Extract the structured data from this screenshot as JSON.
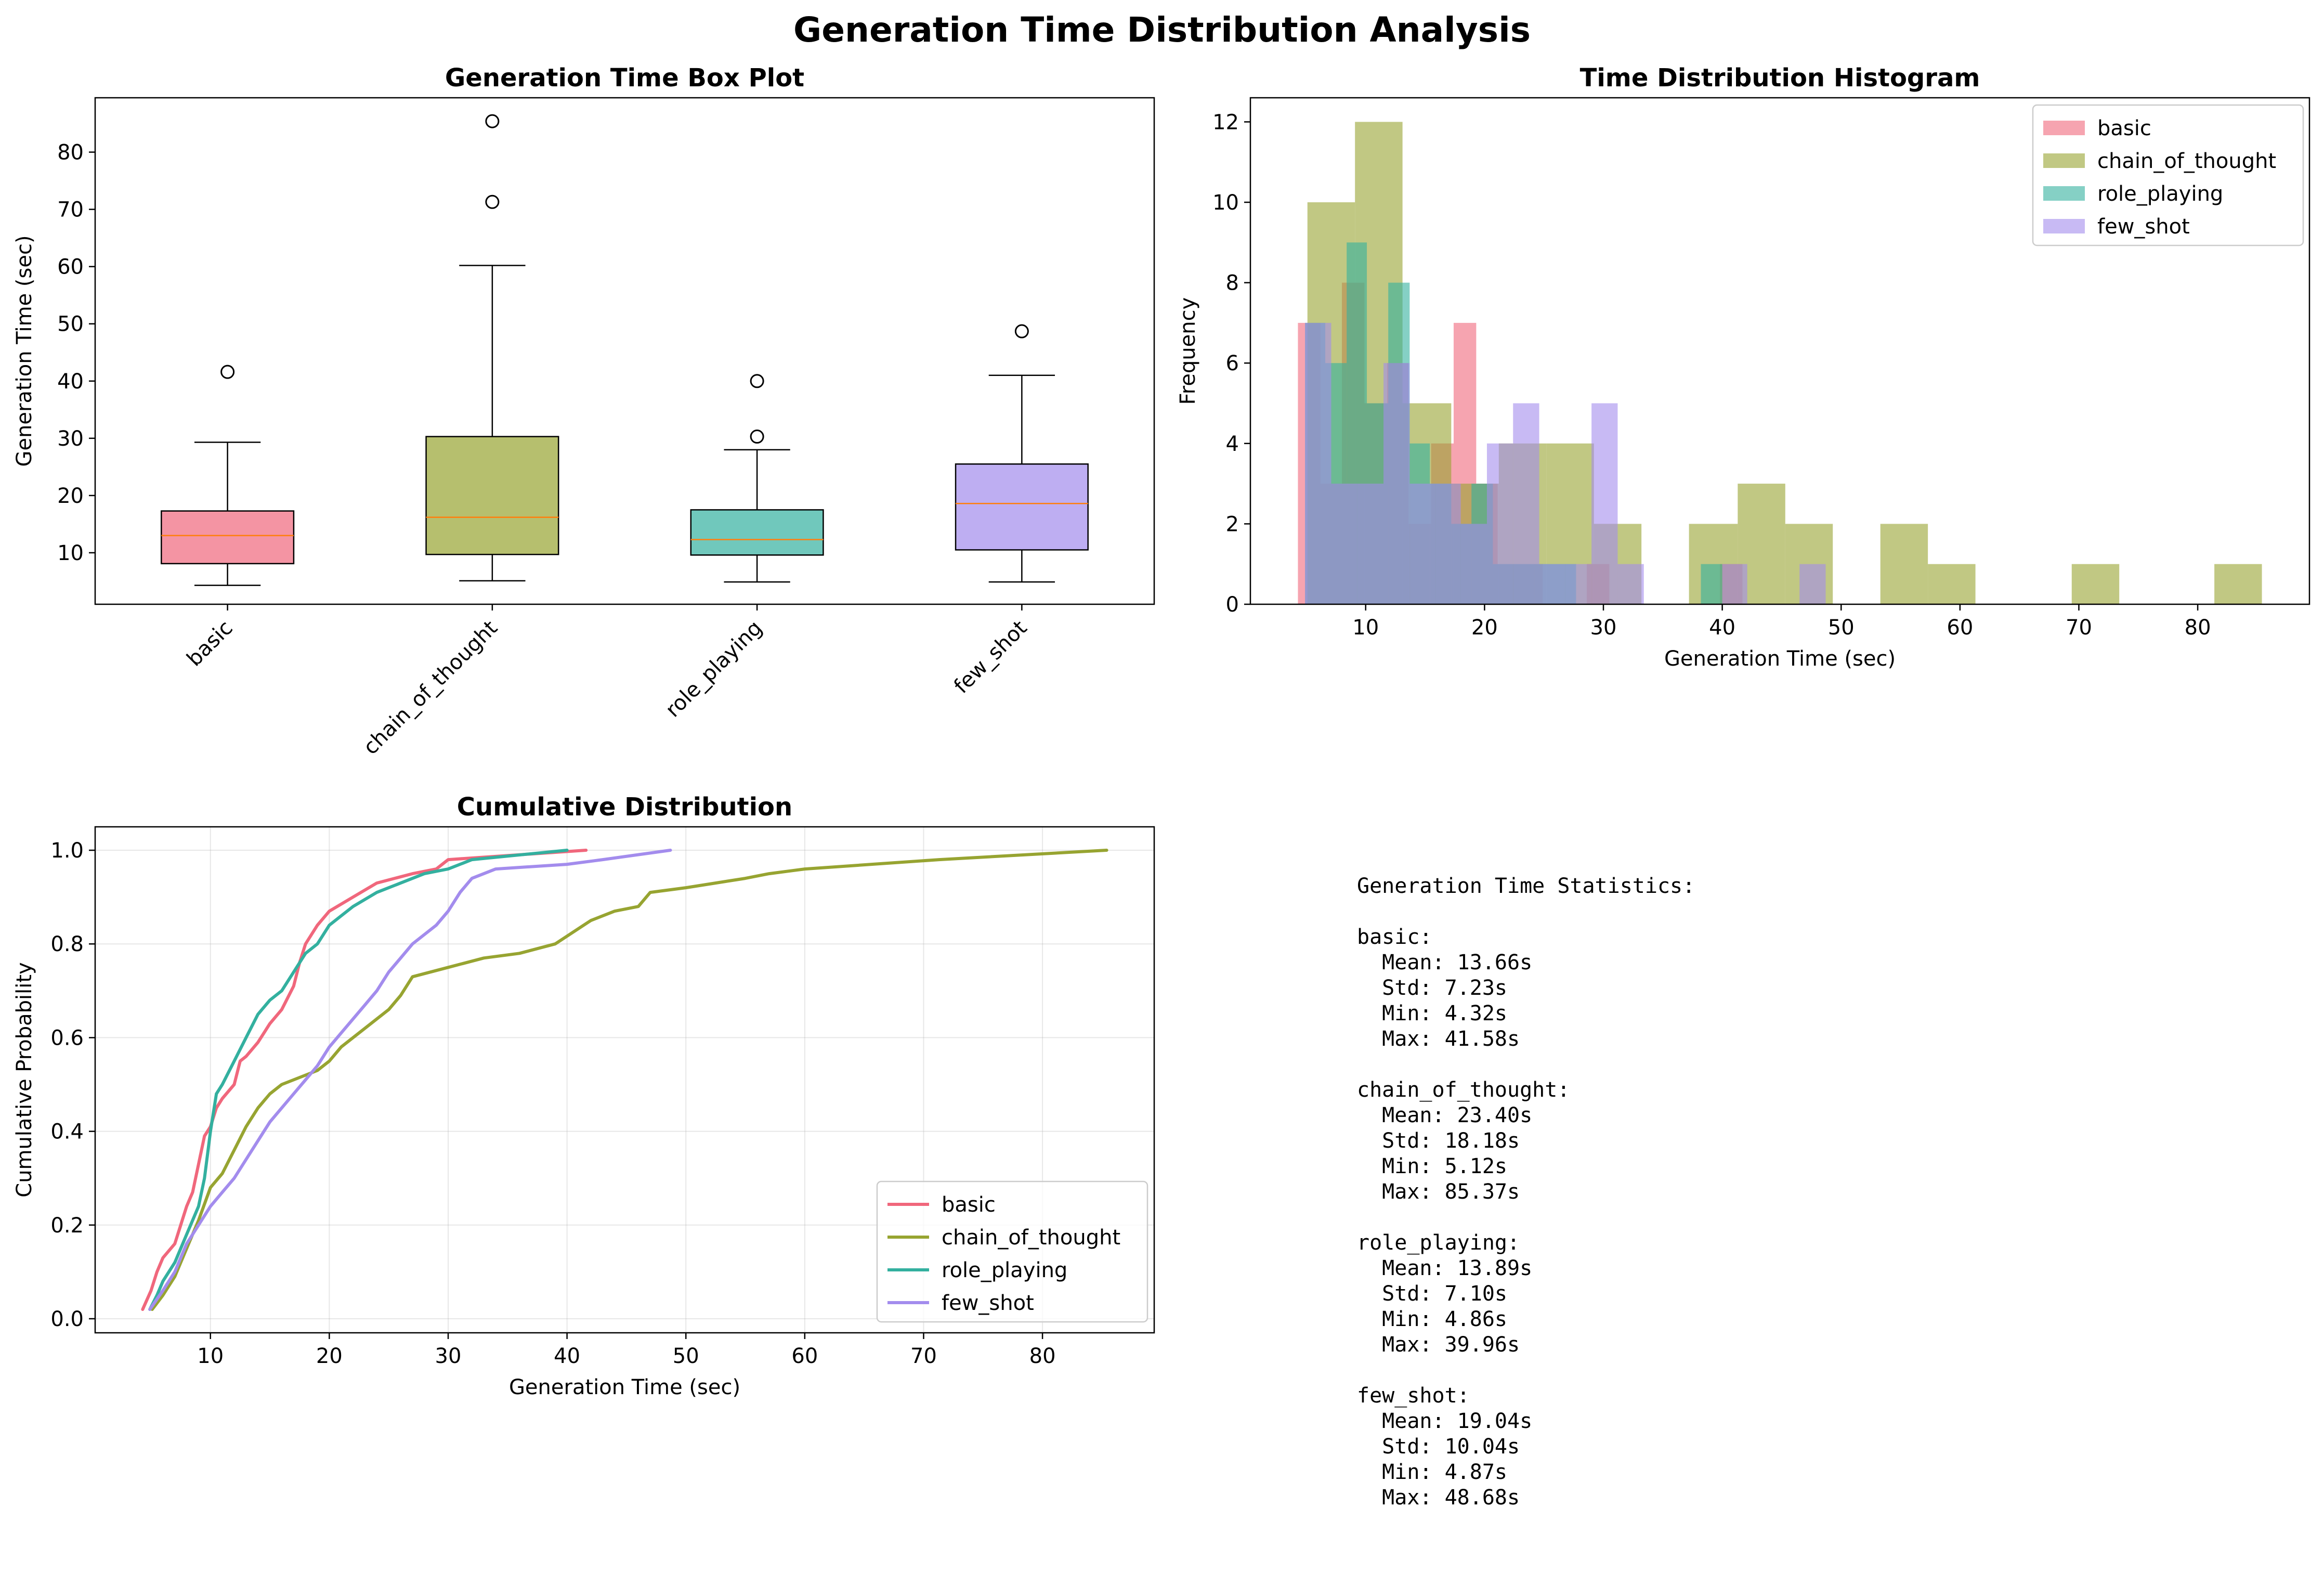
{
  "title": "Generation Time Distribution Analysis",
  "colors": {
    "basic": "#f0677c",
    "chain_of_thought": "#97a431",
    "role_playing": "#33b09f",
    "few_shot": "#a38ced",
    "median": "#ff7f0e"
  },
  "chart_data": [
    {
      "type": "box",
      "title": "Generation Time Box Plot",
      "ylabel": "Generation Time (sec)",
      "xlabel": "",
      "ylim": [
        1,
        89.5
      ],
      "yticks": [
        10,
        20,
        30,
        40,
        50,
        60,
        70,
        80
      ],
      "categories": [
        "basic",
        "chain_of_thought",
        "role_playing",
        "few_shot"
      ],
      "boxes": [
        {
          "name": "basic",
          "whisker_low": 4.3,
          "q1": 8.1,
          "median": 13.0,
          "q3": 17.3,
          "whisker_high": 29.3,
          "outliers": [
            41.6
          ]
        },
        {
          "name": "chain_of_thought",
          "whisker_low": 5.1,
          "q1": 9.7,
          "median": 16.2,
          "q3": 30.3,
          "whisker_high": 60.2,
          "outliers": [
            71.3,
            85.4
          ]
        },
        {
          "name": "role_playing",
          "whisker_low": 4.9,
          "q1": 9.6,
          "median": 12.3,
          "q3": 17.5,
          "whisker_high": 28.0,
          "outliers": [
            30.3,
            40.0
          ]
        },
        {
          "name": "few_shot",
          "whisker_low": 4.9,
          "q1": 10.5,
          "median": 18.6,
          "q3": 25.5,
          "whisker_high": 41.0,
          "outliers": [
            48.7
          ]
        }
      ]
    },
    {
      "type": "histogram",
      "title": "Time Distribution Histogram",
      "xlabel": "Generation Time (sec)",
      "ylabel": "Frequency",
      "xlim": [
        0.3,
        89.4
      ],
      "ylim": [
        0,
        12.6
      ],
      "xticks": [
        10,
        20,
        30,
        40,
        50,
        60,
        70,
        80
      ],
      "yticks": [
        0,
        2,
        4,
        6,
        8,
        10,
        12
      ],
      "legend_position": "top-right",
      "series": [
        {
          "name": "basic",
          "bin_edges": [
            4.3,
            6.2,
            8.0,
            9.9,
            11.8,
            13.6,
            15.5,
            17.4,
            19.3,
            21.1,
            23.0,
            24.9,
            26.7,
            28.6,
            30.5,
            32.3,
            34.2,
            36.1,
            38.0,
            39.8,
            41.7
          ],
          "counts": [
            7,
            3,
            8,
            5,
            6,
            2,
            4,
            7,
            3,
            1,
            1,
            0,
            0,
            1,
            0,
            0,
            0,
            0,
            0,
            1
          ]
        },
        {
          "name": "chain_of_thought",
          "bin_edges": [
            5.1,
            9.1,
            13.1,
            17.2,
            21.2,
            25.2,
            29.2,
            33.2,
            37.2,
            41.3,
            45.3,
            49.3,
            53.3,
            57.3,
            61.3,
            65.3,
            69.4,
            73.4,
            77.4,
            81.4,
            85.4
          ],
          "counts": [
            10,
            12,
            5,
            3,
            4,
            4,
            2,
            0,
            2,
            3,
            2,
            0,
            2,
            1,
            0,
            0,
            1,
            0,
            0,
            1
          ]
        },
        {
          "name": "role_playing",
          "bin_edges": [
            4.9,
            6.6,
            8.4,
            10.1,
            11.9,
            13.7,
            15.4,
            17.2,
            18.9,
            20.7,
            22.4,
            24.2,
            26.0,
            27.7,
            29.5,
            31.2,
            33.0,
            34.7,
            36.5,
            38.2,
            40.0
          ],
          "counts": [
            7,
            6,
            9,
            5,
            8,
            4,
            3,
            2,
            3,
            1,
            1,
            1,
            1,
            0,
            0,
            0,
            0,
            0,
            0,
            1
          ]
        },
        {
          "name": "few_shot",
          "bin_edges": [
            4.9,
            7.1,
            9.3,
            11.5,
            13.7,
            15.9,
            18.0,
            20.2,
            22.4,
            24.6,
            26.8,
            29.0,
            31.2,
            33.4,
            35.6,
            37.8,
            40.0,
            42.1,
            44.3,
            46.5,
            48.7
          ],
          "counts": [
            7,
            3,
            3,
            6,
            3,
            3,
            2,
            4,
            5,
            1,
            1,
            5,
            1,
            0,
            0,
            0,
            1,
            0,
            0,
            1
          ]
        }
      ]
    },
    {
      "type": "line",
      "title": "Cumulative Distribution",
      "xlabel": "Generation Time (sec)",
      "ylabel": "Cumulative Probability",
      "xlim": [
        0.3,
        89.4
      ],
      "ylim": [
        -0.03,
        1.05
      ],
      "xticks": [
        10,
        20,
        30,
        40,
        50,
        60,
        70,
        80
      ],
      "yticks": [
        0.0,
        0.2,
        0.4,
        0.6,
        0.8,
        1.0
      ],
      "grid": true,
      "legend_position": "lower-right",
      "series": [
        {
          "name": "basic",
          "x": [
            4.3,
            5.0,
            5.5,
            6.0,
            7.0,
            7.5,
            8.0,
            8.5,
            9.0,
            9.5,
            10.0,
            10.5,
            11.0,
            12.0,
            12.5,
            13.0,
            14.0,
            15.0,
            16.0,
            17.0,
            17.5,
            18.0,
            19.0,
            20.0,
            22.0,
            24.0,
            27.0,
            29.0,
            30.0,
            41.6
          ],
          "y": [
            0.02,
            0.06,
            0.1,
            0.13,
            0.16,
            0.2,
            0.24,
            0.27,
            0.33,
            0.39,
            0.41,
            0.45,
            0.47,
            0.5,
            0.55,
            0.56,
            0.59,
            0.63,
            0.66,
            0.71,
            0.76,
            0.8,
            0.84,
            0.87,
            0.9,
            0.93,
            0.95,
            0.96,
            0.98,
            1.0
          ]
        },
        {
          "name": "chain_of_thought",
          "x": [
            5.1,
            6.0,
            7.0,
            8.0,
            9.0,
            10.0,
            11.0,
            12.0,
            13.0,
            14.0,
            15.0,
            16.0,
            17.0,
            18.0,
            19.0,
            20.0,
            21.0,
            23.0,
            25.0,
            26.0,
            27.0,
            30.0,
            33.0,
            36.0,
            39.0,
            42.0,
            44.0,
            46.0,
            47.0,
            50.0,
            55.0,
            57.0,
            60.0,
            71.3,
            85.4
          ],
          "y": [
            0.02,
            0.05,
            0.09,
            0.15,
            0.21,
            0.28,
            0.31,
            0.36,
            0.41,
            0.45,
            0.48,
            0.5,
            0.51,
            0.52,
            0.53,
            0.55,
            0.58,
            0.62,
            0.66,
            0.69,
            0.73,
            0.75,
            0.77,
            0.78,
            0.8,
            0.85,
            0.87,
            0.88,
            0.91,
            0.92,
            0.94,
            0.95,
            0.96,
            0.98,
            1.0
          ]
        },
        {
          "name": "role_playing",
          "x": [
            4.9,
            5.5,
            6.0,
            7.0,
            8.0,
            9.0,
            9.5,
            10.0,
            10.5,
            11.0,
            12.0,
            13.0,
            14.0,
            15.0,
            16.0,
            17.0,
            18.0,
            19.0,
            20.0,
            21.0,
            22.0,
            24.0,
            26.0,
            28.0,
            30.0,
            32.0,
            40.0
          ],
          "y": [
            0.02,
            0.05,
            0.08,
            0.12,
            0.18,
            0.24,
            0.3,
            0.4,
            0.48,
            0.5,
            0.55,
            0.6,
            0.65,
            0.68,
            0.7,
            0.74,
            0.78,
            0.8,
            0.84,
            0.86,
            0.88,
            0.91,
            0.93,
            0.95,
            0.96,
            0.98,
            1.0
          ]
        },
        {
          "name": "few_shot",
          "x": [
            4.9,
            6.0,
            7.0,
            8.0,
            9.0,
            10.0,
            11.0,
            12.0,
            13.0,
            14.0,
            15.0,
            16.0,
            17.0,
            18.0,
            19.0,
            20.0,
            21.0,
            22.0,
            23.0,
            24.0,
            25.0,
            26.0,
            27.0,
            29.0,
            30.0,
            31.0,
            32.0,
            34.0,
            40.0,
            43.0,
            48.7
          ],
          "y": [
            0.02,
            0.06,
            0.1,
            0.16,
            0.2,
            0.24,
            0.27,
            0.3,
            0.34,
            0.38,
            0.42,
            0.45,
            0.48,
            0.51,
            0.54,
            0.58,
            0.61,
            0.64,
            0.67,
            0.7,
            0.74,
            0.77,
            0.8,
            0.84,
            0.87,
            0.91,
            0.94,
            0.96,
            0.97,
            0.98,
            1.0
          ]
        }
      ]
    }
  ],
  "statistics_text": "Generation Time Statistics:\n\nbasic:\n  Mean: 13.66s\n  Std: 7.23s\n  Min: 4.32s\n  Max: 41.58s\n\nchain_of_thought:\n  Mean: 23.40s\n  Std: 18.18s\n  Min: 5.12s\n  Max: 85.37s\n\nrole_playing:\n  Mean: 13.89s\n  Std: 7.10s\n  Min: 4.86s\n  Max: 39.96s\n\nfew_shot:\n  Mean: 19.04s\n  Std: 10.04s\n  Min: 4.87s\n  Max: 48.68s"
}
